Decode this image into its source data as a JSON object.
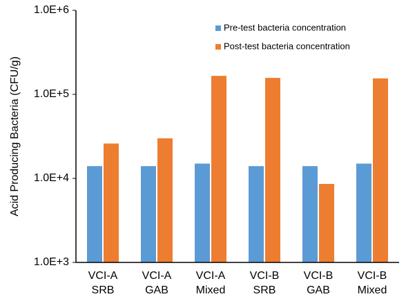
{
  "chart_data": {
    "type": "bar",
    "y_label": "Acid Producing Bacteria (CFU/g)",
    "categories": [
      [
        "VCI-A",
        "SRB"
      ],
      [
        "VCI-A",
        "GAB"
      ],
      [
        "VCI-A",
        "Mixed"
      ],
      [
        "VCI-B",
        "SRB"
      ],
      [
        "VCI-B",
        "GAB"
      ],
      [
        "VCI-B",
        "Mixed"
      ]
    ],
    "series": [
      {
        "name": "Pre-test bacteria concentration",
        "color": "#5b9bd5",
        "values": [
          14000,
          14000,
          15000,
          14000,
          14000,
          15000
        ]
      },
      {
        "name": "Post-test bacteria concentration",
        "color": "#ed7d31",
        "values": [
          26000,
          30000,
          166000,
          157000,
          8600,
          155000
        ]
      }
    ],
    "ylim": [
      1000,
      1000000
    ],
    "yticks": [
      {
        "value": 1000,
        "label": "1.0E+3"
      },
      {
        "value": 10000,
        "label": "1.0E+4"
      },
      {
        "value": 100000,
        "label": "1.0E+5"
      },
      {
        "value": 1000000,
        "label": "1.0E+6"
      }
    ],
    "log_scale": true,
    "grid": false,
    "legend": "upper right"
  }
}
